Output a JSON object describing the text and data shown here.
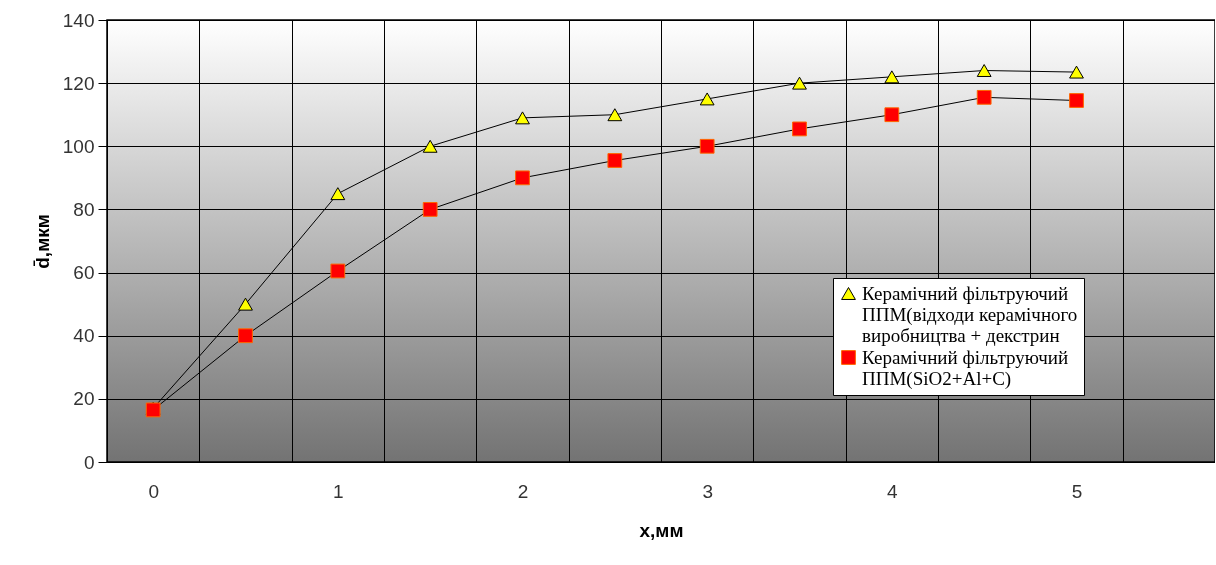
{
  "chart_data": {
    "type": "line",
    "xlabel": "x,мм",
    "ylabel": "d̄,мкм",
    "x": [
      0,
      0.5,
      1,
      1.5,
      2,
      2.5,
      3,
      3.5,
      4,
      4.5,
      5
    ],
    "series": [
      {
        "name": "Керамічний фільтруючий ППМ(відходи керамічного виробництва + декстрин",
        "color": "#ffff00",
        "marker": "triangle",
        "values": [
          17,
          50,
          85,
          100,
          109,
          110,
          115,
          120,
          122,
          124,
          123.5
        ]
      },
      {
        "name": "Керамічний фільтруючий ППМ(SiO2+Al+C)",
        "color": "#ff0000",
        "marker": "square",
        "values": [
          16.5,
          40,
          60.5,
          80,
          90,
          95.5,
          100,
          105.5,
          110,
          115.5,
          114.5
        ]
      }
    ],
    "xlim": [
      -0.25,
      5.75
    ],
    "xticks": [
      {
        "value": -0.25,
        "label": null
      },
      0,
      {
        "value": 0.25,
        "label": null
      },
      {
        "value": 0.75,
        "label": null
      },
      1,
      {
        "value": 1.25,
        "label": null
      },
      {
        "value": 1.75,
        "label": null
      },
      2,
      {
        "value": 2.25,
        "label": null
      },
      {
        "value": 2.75,
        "label": null
      },
      3,
      {
        "value": 3.25,
        "label": null
      },
      {
        "value": 3.75,
        "label": null
      },
      4,
      {
        "value": 4.25,
        "label": null
      },
      {
        "value": 4.75,
        "label": null
      },
      5,
      {
        "value": 5.25,
        "label": null
      },
      {
        "value": 5.75,
        "label": null
      }
    ],
    "ylim": [
      0,
      140
    ],
    "yticks": [
      0,
      20,
      40,
      60,
      80,
      100,
      120,
      140
    ],
    "grid": true,
    "legend": "bottom right"
  }
}
